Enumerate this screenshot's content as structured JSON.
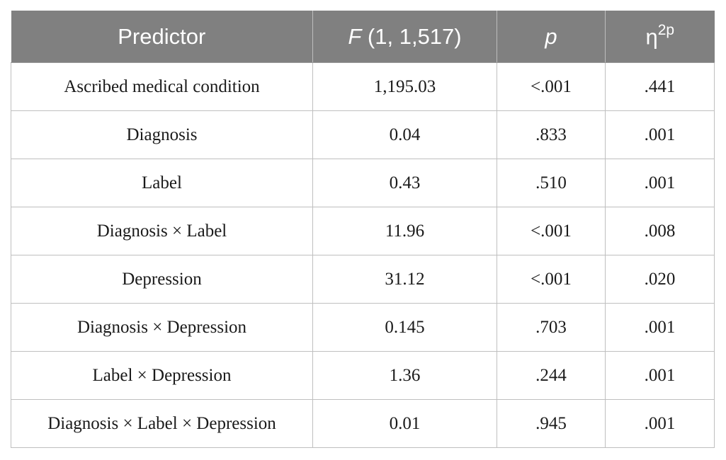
{
  "table": {
    "headers": {
      "predictor": "Predictor",
      "f_symbol": "F",
      "f_df": " (1, 1,517)",
      "p": "p",
      "eta_base": "η",
      "eta_sup": "2p"
    },
    "rows": [
      {
        "predictor": "Ascribed medical condition",
        "f": "1,195.03",
        "p": "<.001",
        "eta": ".441"
      },
      {
        "predictor": "Diagnosis",
        "f": "0.04",
        "p": ".833",
        "eta": ".001"
      },
      {
        "predictor": "Label",
        "f": "0.43",
        "p": ".510",
        "eta": ".001"
      },
      {
        "predictor": "Diagnosis × Label",
        "f": "11.96",
        "p": "<.001",
        "eta": ".008"
      },
      {
        "predictor": "Depression",
        "f": "31.12",
        "p": "<.001",
        "eta": ".020"
      },
      {
        "predictor": "Diagnosis × Depression",
        "f": "0.145",
        "p": ".703",
        "eta": ".001"
      },
      {
        "predictor": "Label × Depression",
        "f": "1.36",
        "p": ".244",
        "eta": ".001"
      },
      {
        "predictor": "Diagnosis × Label × Depression",
        "f": "0.01",
        "p": ".945",
        "eta": ".001"
      }
    ]
  }
}
